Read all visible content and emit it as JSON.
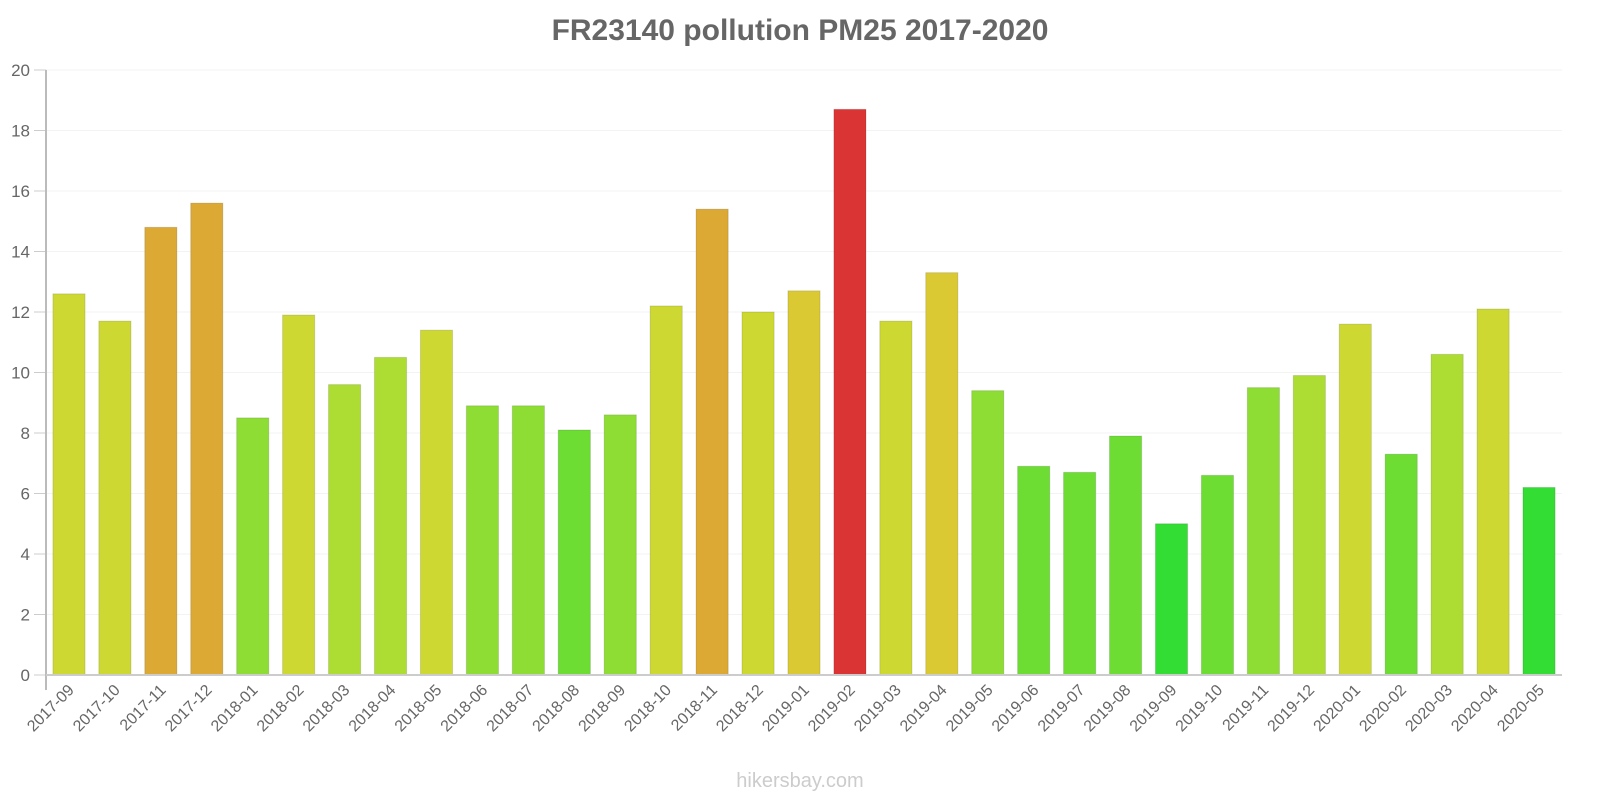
{
  "chart_data": {
    "type": "bar",
    "title": "FR23140 pollution PM25 2017-2020",
    "xlabel": "",
    "ylabel": "",
    "ylim": [
      0,
      20
    ],
    "yticks": [
      0,
      2,
      4,
      6,
      8,
      10,
      12,
      14,
      16,
      18,
      20
    ],
    "grid": true,
    "legend": null,
    "categories": [
      "2017-09",
      "2017-10",
      "2017-11",
      "2017-12",
      "2018-01",
      "2018-02",
      "2018-03",
      "2018-04",
      "2018-05",
      "2018-06",
      "2018-07",
      "2018-08",
      "2018-09",
      "2018-10",
      "2018-11",
      "2018-12",
      "2019-01",
      "2019-02",
      "2019-03",
      "2019-04",
      "2019-05",
      "2019-06",
      "2019-07",
      "2019-08",
      "2019-09",
      "2019-10",
      "2019-11",
      "2019-12",
      "2020-01",
      "2020-02",
      "2020-03",
      "2020-04",
      "2020-05"
    ],
    "values": [
      12.6,
      11.7,
      14.8,
      15.6,
      8.5,
      11.9,
      9.6,
      10.5,
      11.4,
      8.9,
      8.9,
      8.1,
      8.6,
      12.2,
      15.4,
      12.0,
      12.7,
      18.7,
      11.7,
      13.3,
      9.4,
      6.9,
      6.7,
      7.9,
      5.0,
      6.6,
      9.5,
      9.9,
      11.6,
      7.3,
      10.6,
      12.1,
      6.2
    ],
    "colors": [
      "#cdd932",
      "#cdd932",
      "#dba934",
      "#dba934",
      "#8ddd34",
      "#cdd932",
      "#addd32",
      "#addd32",
      "#cdd932",
      "#8ddd34",
      "#8ddd34",
      "#6ddd34",
      "#8ddd34",
      "#cdd932",
      "#dba934",
      "#cdd932",
      "#dbc934",
      "#db3434",
      "#cdd932",
      "#dbc934",
      "#8ddd34",
      "#6ddd34",
      "#6ddd34",
      "#6ddd34",
      "#34dd34",
      "#6ddd34",
      "#8ddd34",
      "#addd32",
      "#cdd932",
      "#6ddd34",
      "#addd32",
      "#cdd932",
      "#34dd34"
    ]
  },
  "watermark": "hikersbay.com"
}
